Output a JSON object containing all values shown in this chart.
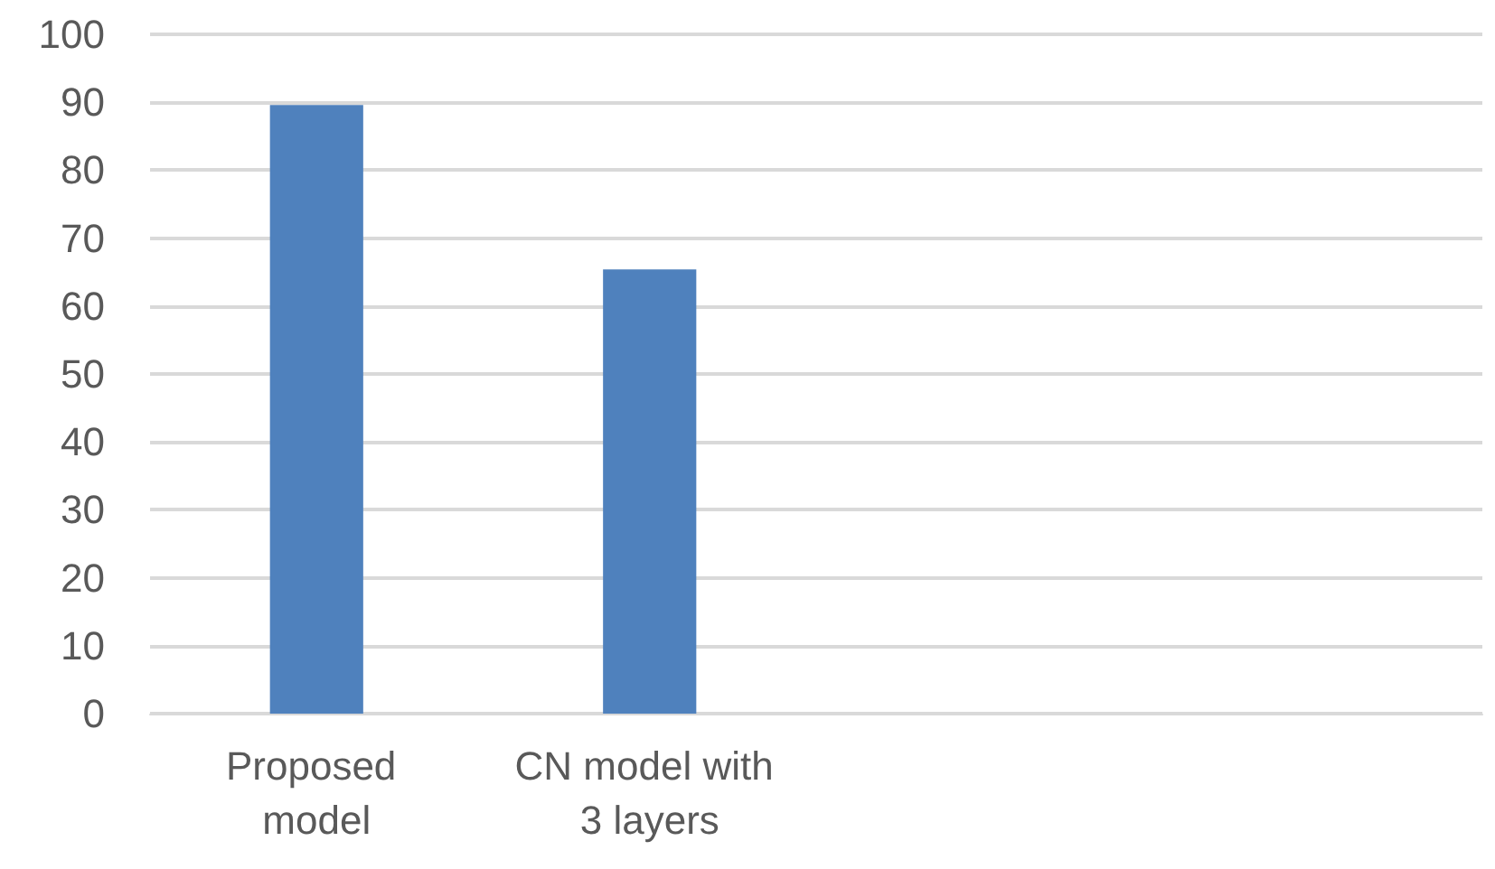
{
  "chart_data": {
    "type": "bar",
    "categories": [
      "Proposed model",
      "CN model with 3 layers",
      null,
      null
    ],
    "values": [
      89.6,
      65.4,
      null,
      null
    ],
    "color": "#4f81bd",
    "ylim": [
      0,
      100
    ],
    "yticks": [
      0,
      10,
      20,
      30,
      40,
      50,
      60,
      70,
      80,
      90,
      100
    ],
    "grid": "y"
  }
}
